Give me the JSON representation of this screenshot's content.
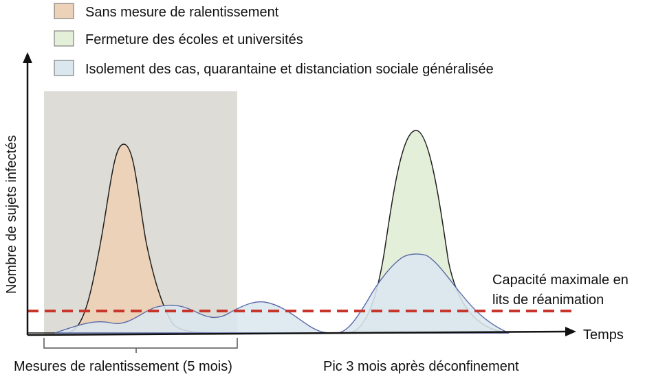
{
  "chart_data": {
    "type": "area",
    "xlabel": "Temps",
    "ylabel": "Nombre de sujets infectés",
    "legend": [
      {
        "name": "Sans mesure de ralentissement",
        "color": "#ecd2b8"
      },
      {
        "name": "Fermeture des écoles et universités",
        "color": "#e4efd9"
      },
      {
        "name": "Isolement des cas, quarantaine et distanciation sociale généralisée",
        "color": "#dbe7ef"
      }
    ],
    "capacity_label": [
      "Capacité maximale en",
      "lits de réanimation"
    ],
    "bottom_labels": {
      "left": "Mesures de ralentissement (5 mois)",
      "right": "Pic 3 mois après déconfinement"
    },
    "colors": {
      "shade": "#dedcd6",
      "capacity_line": "#c8362b",
      "axis": "#111111",
      "orange": "#ecd2b8",
      "green": "#e4efd9",
      "blue": "#dbe7ef",
      "blue_stroke": "#5c6aa8"
    }
  }
}
